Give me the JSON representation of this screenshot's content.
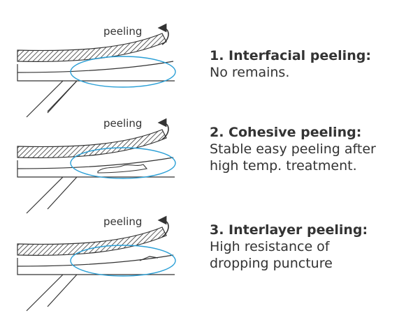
{
  "panels": [
    {
      "peel_label": "peeling",
      "title": "1. Interfacial peeling:",
      "description_lines": [
        "No remains."
      ]
    },
    {
      "peel_label": "peeling",
      "title": "2. Cohesive peeling:",
      "description_lines": [
        "Stable easy peeling after",
        "high temp. treatment."
      ]
    },
    {
      "peel_label": "peeling",
      "title": "3. Interlayer peeling:",
      "description_lines": [
        "High resistance of",
        "dropping puncture"
      ]
    }
  ],
  "colors": {
    "line": "#333333",
    "ellipse": "#2a9fd6",
    "text": "#333333"
  },
  "icons": [
    "peel-arrow-icon"
  ]
}
